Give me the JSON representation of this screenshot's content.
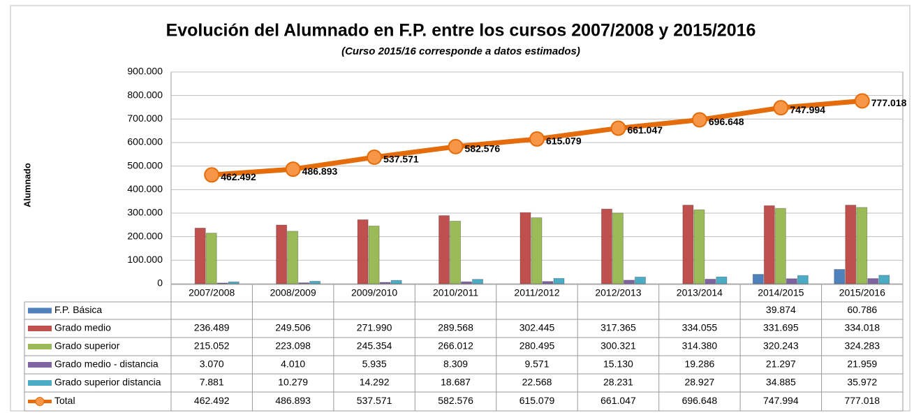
{
  "chart_data": {
    "type": "bar",
    "title": "Evolución del Alumnado en F.P. entre los cursos 2007/2008 y 2015/2016",
    "subtitle": "(Curso 2015/16 corresponde a datos estimados)",
    "y_label": "Alumnado",
    "categories": [
      "2007/2008",
      "2008/2009",
      "2009/2010",
      "2010/2011",
      "2011/2012",
      "2012/2013",
      "2013/2014",
      "2014/2015",
      "2015/2016"
    ],
    "ylim": [
      0,
      900000
    ],
    "yticks": [
      0,
      {
        "value": 100000,
        "label": "100.000"
      },
      {
        "value": 200000,
        "label": "200.000"
      },
      {
        "value": 300000,
        "label": "300.000"
      },
      {
        "value": 400000,
        "label": "400.000"
      },
      {
        "value": 500000,
        "label": "500.000"
      },
      {
        "value": 600000,
        "label": "600.000"
      },
      {
        "value": 700000,
        "label": "700.000"
      },
      {
        "value": 800000,
        "label": "800.000"
      },
      {
        "value": 900000,
        "label": "900.000"
      }
    ],
    "grid": true,
    "series": [
      {
        "name": "F.P. Básica",
        "color": "#4f81bd",
        "values": [
          null,
          null,
          null,
          null,
          null,
          null,
          null,
          39874,
          60786
        ],
        "value_labels": [
          null,
          null,
          null,
          null,
          null,
          null,
          null,
          "39.874",
          "60.786"
        ]
      },
      {
        "name": "Grado medio",
        "color": "#c0504d",
        "values": [
          236489,
          249506,
          271990,
          289568,
          302445,
          317365,
          334055,
          331695,
          334018
        ],
        "value_labels": [
          "236.489",
          "249.506",
          "271.990",
          "289.568",
          "302.445",
          "317.365",
          "334.055",
          "331.695",
          "334.018"
        ]
      },
      {
        "name": "Grado superior",
        "color": "#9bbb59",
        "values": [
          215052,
          223098,
          245354,
          266012,
          280495,
          300321,
          314380,
          320243,
          324283
        ],
        "value_labels": [
          "215.052",
          "223.098",
          "245.354",
          "266.012",
          "280.495",
          "300.321",
          "314.380",
          "320.243",
          "324.283"
        ]
      },
      {
        "name": "Grado medio - distancia",
        "color": "#8064a2",
        "values": [
          3070,
          4010,
          5935,
          8309,
          9571,
          15130,
          19286,
          21297,
          21959
        ],
        "value_labels": [
          "3.070",
          "4.010",
          "5.935",
          "8.309",
          "9.571",
          "15.130",
          "19.286",
          "21.297",
          "21.959"
        ]
      },
      {
        "name": "Grado superior distancia",
        "color": "#4bacc6",
        "values": [
          7881,
          10279,
          14292,
          18687,
          22568,
          28231,
          28927,
          34885,
          35972
        ],
        "value_labels": [
          "7.881",
          "10.279",
          "14.292",
          "18.687",
          "22.568",
          "28.231",
          "28.927",
          "34.885",
          "35.972"
        ]
      },
      {
        "name": "Total",
        "type": "line",
        "color": "#e46c0a",
        "values": [
          462492,
          486893,
          537571,
          582576,
          615079,
          661047,
          696648,
          747994,
          777018
        ],
        "value_labels": [
          "462.492",
          "486.893",
          "537.571",
          "582.576",
          "615.079",
          "661.047",
          "696.648",
          "747.994",
          "777.018"
        ]
      }
    ]
  }
}
